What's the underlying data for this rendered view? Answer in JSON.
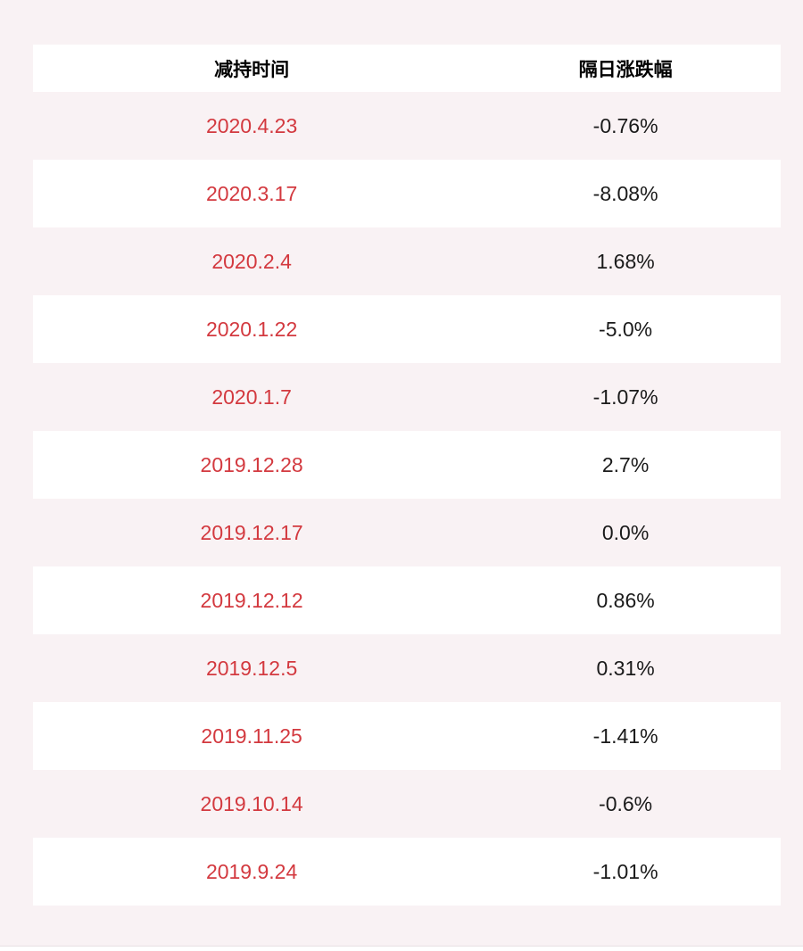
{
  "table": {
    "columns": [
      {
        "label": "减持时间"
      },
      {
        "label": "隔日涨跌幅"
      }
    ],
    "rows": [
      {
        "date": "2020.4.23",
        "change": "-0.76%"
      },
      {
        "date": "2020.3.17",
        "change": "-8.08%"
      },
      {
        "date": "2020.2.4",
        "change": "1.68%"
      },
      {
        "date": "2020.1.22",
        "change": "-5.0%"
      },
      {
        "date": "2020.1.7",
        "change": "-1.07%"
      },
      {
        "date": "2019.12.28",
        "change": "2.7%"
      },
      {
        "date": "2019.12.17",
        "change": "0.0%"
      },
      {
        "date": "2019.12.12",
        "change": "0.86%"
      },
      {
        "date": "2019.12.5",
        "change": "0.31%"
      },
      {
        "date": "2019.11.25",
        "change": "-1.41%"
      },
      {
        "date": "2019.10.14",
        "change": "-0.6%"
      },
      {
        "date": "2019.9.24",
        "change": "-1.01%"
      }
    ]
  },
  "colors": {
    "page_background": "#f9f2f4",
    "row_white": "#ffffff",
    "date_red": "#d3393f",
    "value_black": "#1a1a1a",
    "bottom_divider": "#e8e0e3"
  },
  "chart_data": {
    "type": "table",
    "title": "",
    "columns": [
      "减持时间",
      "隔日涨跌幅"
    ],
    "rows": [
      [
        "2020.4.23",
        "-0.76%"
      ],
      [
        "2020.3.17",
        "-8.08%"
      ],
      [
        "2020.2.4",
        "1.68%"
      ],
      [
        "2020.1.22",
        "-5.0%"
      ],
      [
        "2020.1.7",
        "-1.07%"
      ],
      [
        "2019.12.28",
        "2.7%"
      ],
      [
        "2019.12.17",
        "0.0%"
      ],
      [
        "2019.12.12",
        "0.86%"
      ],
      [
        "2019.12.5",
        "0.31%"
      ],
      [
        "2019.11.25",
        "-1.41%"
      ],
      [
        "2019.10.14",
        "-0.6%"
      ],
      [
        "2019.9.24",
        "-1.01%"
      ]
    ],
    "values": [
      -0.76,
      -8.08,
      1.68,
      -5.0,
      -1.07,
      2.7,
      0.0,
      0.86,
      0.31,
      -1.41,
      -0.6,
      -1.01
    ],
    "categories": [
      "2020.4.23",
      "2020.3.17",
      "2020.2.4",
      "2020.1.22",
      "2020.1.7",
      "2019.12.28",
      "2019.12.17",
      "2019.12.12",
      "2019.12.5",
      "2019.11.25",
      "2019.10.14",
      "2019.9.24"
    ]
  }
}
